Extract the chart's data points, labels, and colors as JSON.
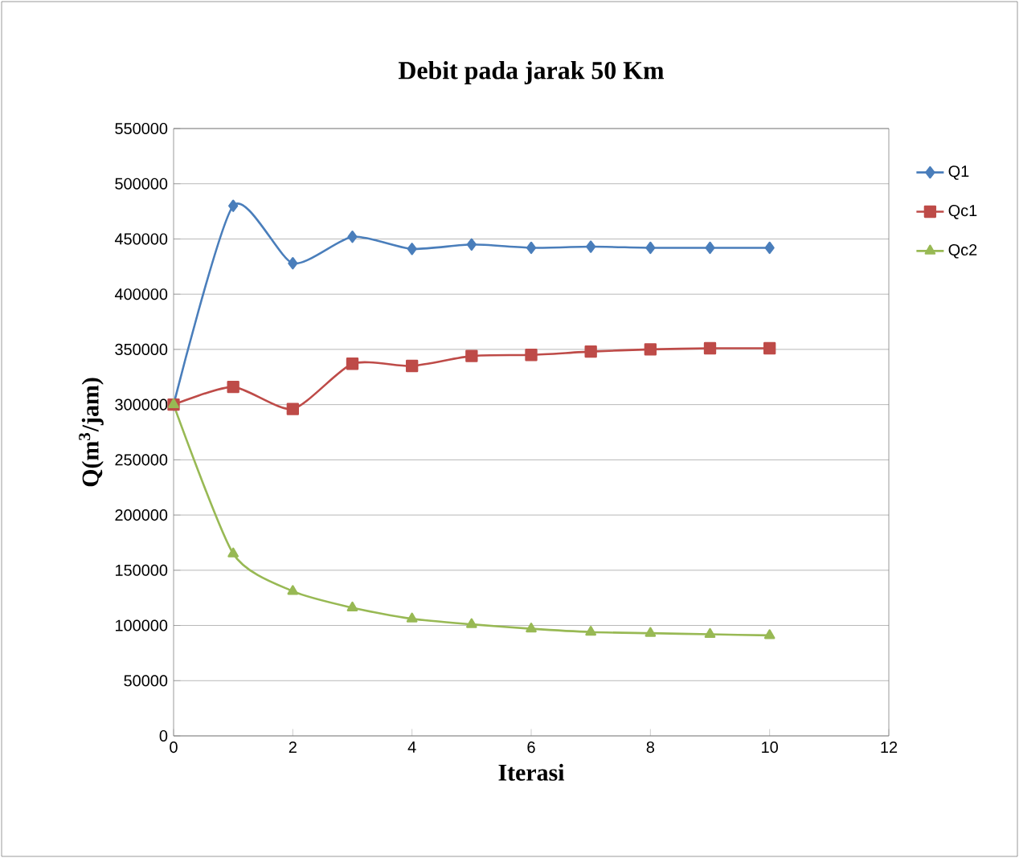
{
  "chart_data": {
    "type": "line",
    "title": "Debit pada jarak 50 Km",
    "xlabel": "Iterasi",
    "ylabel": "Q(m$^{3}$/jam)",
    "x": [
      0,
      1,
      2,
      3,
      4,
      5,
      6,
      7,
      8,
      9,
      10
    ],
    "series": [
      {
        "name": "Q1",
        "color": "#4a7ebb",
        "marker": "diamond",
        "values": [
          300000,
          480000,
          428000,
          452000,
          441000,
          445000,
          442000,
          443000,
          442000,
          442000,
          442000
        ]
      },
      {
        "name": "Qc1",
        "color": "#be4b48",
        "marker": "square",
        "values": [
          300000,
          316000,
          296000,
          337000,
          335000,
          344000,
          345000,
          348000,
          350000,
          351000,
          351000
        ]
      },
      {
        "name": "Qc2",
        "color": "#98b954",
        "marker": "triangle",
        "values": [
          300000,
          165000,
          131000,
          116000,
          106000,
          101000,
          97000,
          94000,
          93000,
          92000,
          91000
        ]
      }
    ],
    "xlim": [
      0,
      12
    ],
    "xticks": [
      0,
      2,
      4,
      6,
      8,
      10,
      12
    ],
    "ylim": [
      0,
      550000
    ],
    "yticks": [
      0,
      50000,
      100000,
      150000,
      200000,
      250000,
      300000,
      350000,
      400000,
      450000,
      500000,
      550000
    ],
    "grid": "y",
    "legend": "right"
  }
}
